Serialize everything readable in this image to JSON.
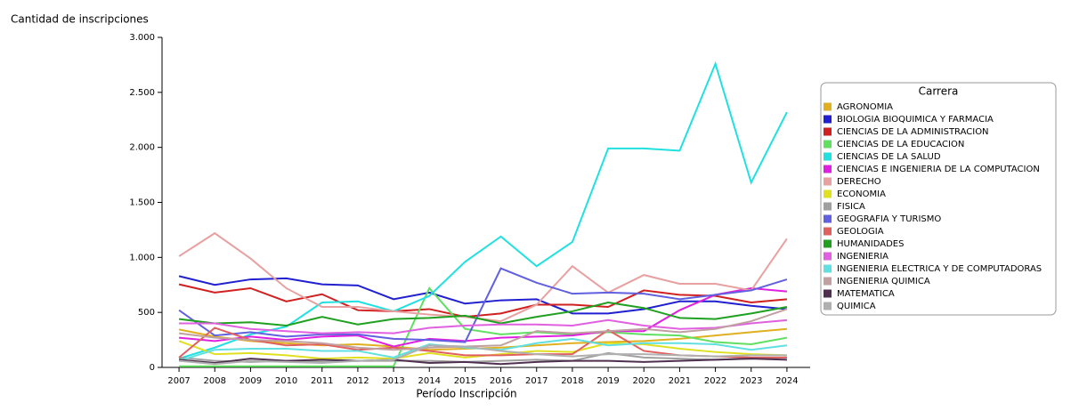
{
  "chart_data": {
    "type": "line",
    "y_label": "Cantidad de inscripciones",
    "x_label": "Período Inscripción",
    "legend_title": "Carrera",
    "legend": "right",
    "categories": [
      "2007",
      "2008",
      "2009",
      "2010",
      "2011",
      "2012",
      "2013",
      "2014",
      "2015",
      "2016",
      "2017",
      "2018",
      "2019",
      "2020",
      "2021",
      "2022",
      "2023",
      "2024"
    ],
    "ylim": [
      0,
      3000
    ],
    "yticks": [
      0,
      500,
      {
        "value": 1000,
        "label": "1.000"
      },
      {
        "value": 1500,
        "label": "1.500"
      },
      {
        "value": 2000,
        "label": "2.000"
      },
      {
        "value": 2500,
        "label": "2.500"
      },
      {
        "value": 3000,
        "label": "3.000"
      }
    ],
    "series": [
      {
        "name": "AGRONOMIA",
        "color": "#e0b020",
        "values": [
          345,
          280,
          240,
          220,
          200,
          210,
          190,
          160,
          170,
          180,
          200,
          220,
          230,
          240,
          260,
          290,
          320,
          350
        ]
      },
      {
        "name": "BIOLOGIA BIOQUIMICA Y FARMACIA",
        "color": "#2020d0",
        "values": [
          830,
          750,
          800,
          810,
          755,
          745,
          620,
          680,
          580,
          610,
          620,
          490,
          490,
          530,
          600,
          600,
          560,
          530
        ]
      },
      {
        "name": "CIENCIAS DE LA ADMINISTRACION",
        "color": "#d02020",
        "values": [
          755,
          680,
          720,
          600,
          665,
          520,
          510,
          530,
          460,
          490,
          570,
          570,
          550,
          700,
          660,
          650,
          590,
          620
        ]
      },
      {
        "name": "CIENCIAS DE LA EDUCACION",
        "color": "#60e060",
        "values": [
          10,
          10,
          10,
          10,
          10,
          10,
          10,
          720,
          350,
          300,
          320,
          300,
          320,
          300,
          290,
          230,
          210,
          270
        ]
      },
      {
        "name": "CIENCIAS DE LA SALUD",
        "color": "#20e0e0",
        "values": [
          80,
          180,
          300,
          370,
          590,
          600,
          510,
          650,
          960,
          1190,
          920,
          1140,
          1990,
          1990,
          1970,
          2760,
          1680,
          2320
        ]
      },
      {
        "name": "CIENCIAS E INGENIERIA DE LA COMPUTACION",
        "color": "#e020e0",
        "values": [
          270,
          240,
          280,
          250,
          280,
          290,
          190,
          260,
          240,
          270,
          280,
          290,
          330,
          330,
          520,
          660,
          720,
          690
        ]
      },
      {
        "name": "DERECHO",
        "color": "#e8a0a0",
        "values": [
          1010,
          1220,
          990,
          720,
          550,
          550,
          510,
          480,
          460,
          420,
          570,
          920,
          680,
          840,
          760,
          760,
          700,
          1170
        ]
      },
      {
        "name": "ECONOMIA",
        "color": "#e0e020",
        "values": [
          240,
          120,
          130,
          110,
          80,
          90,
          80,
          130,
          90,
          120,
          150,
          140,
          220,
          210,
          170,
          140,
          120,
          110
        ]
      },
      {
        "name": "FISICA",
        "color": "#a0a0a0",
        "values": [
          90,
          60,
          50,
          60,
          50,
          60,
          60,
          60,
          50,
          60,
          70,
          60,
          130,
          90,
          80,
          70,
          80,
          90
        ]
      },
      {
        "name": "GEOGRAFIA Y TURISMO",
        "color": "#6060e0",
        "values": [
          520,
          290,
          320,
          280,
          300,
          300,
          260,
          250,
          230,
          900,
          770,
          670,
          680,
          670,
          620,
          660,
          700,
          800
        ]
      },
      {
        "name": "GEOLOGIA",
        "color": "#e06060",
        "values": [
          90,
          360,
          250,
          200,
          210,
          160,
          180,
          150,
          110,
          110,
          120,
          120,
          340,
          150,
          110,
          100,
          90,
          90
        ]
      },
      {
        "name": "HUMANIDADES",
        "color": "#20a020",
        "values": [
          440,
          400,
          410,
          380,
          460,
          390,
          440,
          450,
          470,
          400,
          460,
          510,
          590,
          540,
          450,
          440,
          490,
          550
        ]
      },
      {
        "name": "INGENIERIA",
        "color": "#e060e0",
        "values": [
          400,
          400,
          350,
          330,
          310,
          320,
          310,
          360,
          380,
          390,
          390,
          380,
          430,
          380,
          350,
          360,
          400,
          430
        ]
      },
      {
        "name": "INGENIERIA ELECTRICA Y DE COMPUTADORAS",
        "color": "#60e0e0",
        "values": [
          60,
          160,
          170,
          170,
          150,
          150,
          90,
          210,
          180,
          160,
          220,
          260,
          200,
          220,
          220,
          210,
          160,
          200
        ]
      },
      {
        "name": "INGENIERIA QUIMICA",
        "color": "#c0a0a0",
        "values": [
          310,
          270,
          250,
          240,
          220,
          180,
          160,
          180,
          190,
          200,
          330,
          310,
          330,
          350,
          320,
          350,
          420,
          530
        ]
      },
      {
        "name": "MATEMATICA",
        "color": "#503050",
        "values": [
          70,
          40,
          80,
          60,
          70,
          60,
          70,
          40,
          50,
          30,
          50,
          60,
          60,
          50,
          60,
          70,
          80,
          70
        ]
      },
      {
        "name": "QUIMICA",
        "color": "#b0b0b0",
        "values": [
          60,
          30,
          60,
          50,
          40,
          60,
          70,
          200,
          190,
          150,
          120,
          100,
          120,
          120,
          110,
          100,
          110,
          110
        ]
      }
    ]
  }
}
